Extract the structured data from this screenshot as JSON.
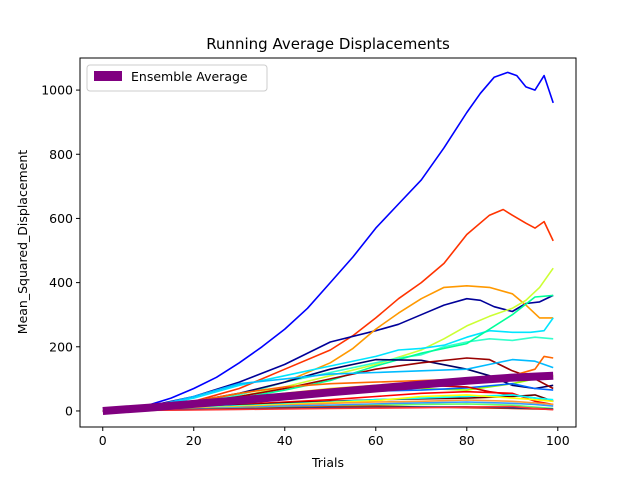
{
  "chart_data": {
    "type": "line",
    "title": "Running Average Displacements",
    "xlabel": "Trials",
    "ylabel": "Mean_Squared_Displacement",
    "xlim": [
      -5,
      104
    ],
    "ylim": [
      -50,
      1100
    ],
    "xticks": [
      0,
      20,
      40,
      60,
      80,
      100
    ],
    "yticks": [
      0,
      200,
      400,
      600,
      800,
      1000
    ],
    "grid": false,
    "legend": {
      "placement": "top-left",
      "entries": [
        "Ensemble Average"
      ]
    },
    "ensemble": {
      "name": "Ensemble Average",
      "color": "#800080",
      "x": [
        0,
        10,
        20,
        30,
        40,
        50,
        60,
        70,
        80,
        90,
        99
      ],
      "y": [
        0,
        10,
        22,
        33,
        45,
        58,
        70,
        82,
        94,
        104,
        110
      ]
    },
    "series": [
      {
        "color": "#0000ff",
        "x": [
          0,
          5,
          10,
          15,
          20,
          25,
          30,
          35,
          40,
          45,
          50,
          55,
          60,
          65,
          70,
          75,
          80,
          83,
          86,
          89,
          91,
          93,
          95,
          97,
          99
        ],
        "y": [
          0,
          5,
          18,
          40,
          70,
          105,
          150,
          200,
          255,
          320,
          400,
          480,
          570,
          645,
          720,
          820,
          930,
          990,
          1040,
          1055,
          1045,
          1010,
          1000,
          1045,
          960
        ]
      },
      {
        "color": "#ff3300",
        "x": [
          0,
          10,
          20,
          30,
          40,
          50,
          55,
          60,
          65,
          70,
          75,
          80,
          85,
          88,
          90,
          93,
          95,
          97,
          99
        ],
        "y": [
          0,
          10,
          30,
          70,
          130,
          190,
          235,
          290,
          350,
          400,
          460,
          550,
          610,
          628,
          610,
          585,
          570,
          590,
          530
        ]
      },
      {
        "color": "#000099",
        "x": [
          0,
          10,
          20,
          30,
          40,
          50,
          60,
          65,
          70,
          75,
          80,
          83,
          86,
          90,
          93,
          96,
          99
        ],
        "y": [
          0,
          15,
          45,
          90,
          145,
          215,
          250,
          270,
          300,
          330,
          350,
          345,
          325,
          310,
          335,
          340,
          360
        ]
      },
      {
        "color": "#ff9900",
        "x": [
          0,
          10,
          20,
          30,
          40,
          50,
          55,
          60,
          65,
          70,
          75,
          80,
          85,
          90,
          93,
          96,
          99
        ],
        "y": [
          0,
          10,
          25,
          50,
          90,
          150,
          195,
          255,
          305,
          350,
          385,
          390,
          385,
          365,
          330,
          290,
          290
        ]
      },
      {
        "color": "#ccff33",
        "x": [
          0,
          10,
          20,
          30,
          40,
          50,
          60,
          70,
          75,
          80,
          85,
          90,
          93,
          96,
          99
        ],
        "y": [
          0,
          5,
          20,
          45,
          75,
          110,
          145,
          190,
          225,
          265,
          295,
          320,
          345,
          385,
          445
        ]
      },
      {
        "color": "#33ffcc",
        "x": [
          0,
          10,
          20,
          30,
          40,
          50,
          60,
          65,
          70,
          75,
          80,
          85,
          90,
          95,
          99
        ],
        "y": [
          0,
          8,
          22,
          50,
          90,
          120,
          150,
          165,
          175,
          200,
          215,
          225,
          220,
          230,
          225
        ]
      },
      {
        "color": "#00e5ff",
        "x": [
          0,
          10,
          20,
          30,
          40,
          50,
          60,
          65,
          70,
          75,
          80,
          85,
          90,
          94,
          97,
          99
        ],
        "y": [
          0,
          10,
          40,
          80,
          110,
          140,
          170,
          190,
          195,
          205,
          230,
          250,
          245,
          245,
          250,
          290
        ]
      },
      {
        "color": "#00ff99",
        "x": [
          0,
          10,
          20,
          30,
          40,
          50,
          60,
          70,
          80,
          90,
          95,
          99
        ],
        "y": [
          0,
          8,
          20,
          40,
          65,
          95,
          140,
          180,
          210,
          300,
          355,
          360
        ]
      },
      {
        "color": "#000066",
        "x": [
          0,
          10,
          20,
          30,
          40,
          50,
          60,
          70,
          80,
          85,
          90,
          95,
          99
        ],
        "y": [
          0,
          12,
          30,
          55,
          90,
          130,
          160,
          158,
          130,
          110,
          80,
          70,
          80
        ]
      },
      {
        "color": "#990000",
        "x": [
          0,
          10,
          20,
          30,
          40,
          50,
          60,
          70,
          80,
          85,
          90,
          95,
          99
        ],
        "y": [
          0,
          8,
          25,
          45,
          70,
          100,
          130,
          150,
          165,
          160,
          125,
          100,
          70
        ]
      },
      {
        "color": "#00bbff",
        "x": [
          0,
          10,
          20,
          30,
          40,
          50,
          60,
          70,
          80,
          85,
          90,
          95,
          99
        ],
        "y": [
          0,
          12,
          45,
          85,
          100,
          115,
          120,
          125,
          130,
          145,
          160,
          155,
          135
        ]
      },
      {
        "color": "#ff6600",
        "x": [
          0,
          10,
          20,
          30,
          40,
          50,
          60,
          70,
          80,
          90,
          95,
          97,
          99
        ],
        "y": [
          0,
          10,
          30,
          55,
          75,
          85,
          90,
          95,
          100,
          110,
          130,
          170,
          165
        ]
      },
      {
        "color": "#ffcc00",
        "x": [
          0,
          10,
          20,
          30,
          40,
          50,
          60,
          70,
          80,
          90,
          95,
          99
        ],
        "y": [
          0,
          6,
          20,
          38,
          55,
          70,
          80,
          85,
          90,
          95,
          105,
          110
        ]
      },
      {
        "color": "#99ff00",
        "x": [
          0,
          10,
          20,
          30,
          40,
          50,
          60,
          70,
          80,
          90,
          95,
          99
        ],
        "y": [
          0,
          6,
          18,
          32,
          45,
          60,
          75,
          70,
          65,
          85,
          100,
          110
        ]
      },
      {
        "color": "#0066ff",
        "x": [
          0,
          10,
          20,
          30,
          40,
          50,
          60,
          70,
          80,
          90,
          95,
          99
        ],
        "y": [
          0,
          5,
          15,
          28,
          40,
          55,
          62,
          65,
          72,
          85,
          70,
          65
        ]
      },
      {
        "color": "#cc0000",
        "x": [
          0,
          10,
          20,
          30,
          40,
          50,
          60,
          70,
          80,
          85,
          90,
          95,
          99
        ],
        "y": [
          0,
          8,
          18,
          30,
          40,
          55,
          68,
          80,
          75,
          60,
          50,
          40,
          30
        ]
      },
      {
        "color": "#ff0000",
        "x": [
          0,
          10,
          20,
          30,
          40,
          50,
          60,
          70,
          80,
          90,
          95,
          99
        ],
        "y": [
          0,
          5,
          12,
          20,
          28,
          35,
          45,
          55,
          60,
          55,
          30,
          20
        ]
      },
      {
        "color": "#660000",
        "x": [
          0,
          10,
          20,
          30,
          40,
          50,
          60,
          70,
          80,
          90,
          95,
          99
        ],
        "y": [
          0,
          5,
          10,
          18,
          25,
          30,
          35,
          38,
          40,
          45,
          50,
          30
        ]
      },
      {
        "color": "#00ffff",
        "x": [
          0,
          10,
          20,
          30,
          40,
          50,
          60,
          70,
          80,
          90,
          95,
          99
        ],
        "y": [
          0,
          4,
          10,
          16,
          22,
          28,
          35,
          40,
          45,
          50,
          40,
          35
        ]
      },
      {
        "color": "#ffff00",
        "x": [
          0,
          10,
          20,
          30,
          40,
          50,
          60,
          70,
          80,
          90,
          95,
          99
        ],
        "y": [
          0,
          4,
          8,
          14,
          20,
          26,
          32,
          45,
          50,
          40,
          35,
          30
        ]
      },
      {
        "color": "#ff9933",
        "x": [
          0,
          10,
          20,
          30,
          40,
          50,
          60,
          70,
          80,
          90,
          95,
          99
        ],
        "y": [
          0,
          3,
          7,
          12,
          18,
          24,
          28,
          30,
          34,
          30,
          25,
          20
        ]
      },
      {
        "color": "#3399ff",
        "x": [
          0,
          10,
          20,
          30,
          40,
          50,
          60,
          70,
          80,
          90,
          95,
          99
        ],
        "y": [
          0,
          3,
          6,
          10,
          15,
          18,
          22,
          25,
          28,
          24,
          20,
          15
        ]
      },
      {
        "color": "#66ff66",
        "x": [
          0,
          10,
          20,
          30,
          40,
          50,
          60,
          70,
          80,
          90,
          95,
          99
        ],
        "y": [
          0,
          3,
          5,
          8,
          11,
          14,
          18,
          20,
          22,
          18,
          12,
          8
        ]
      },
      {
        "color": "#cc3300",
        "x": [
          0,
          10,
          20,
          30,
          40,
          50,
          60,
          70,
          80,
          90,
          95,
          99
        ],
        "y": [
          0,
          2,
          5,
          7,
          10,
          13,
          15,
          12,
          10,
          8,
          6,
          5
        ]
      },
      {
        "color": "#003399",
        "x": [
          0,
          10,
          20,
          30,
          40,
          50,
          60,
          70,
          80,
          90,
          95,
          99
        ],
        "y": [
          0,
          2,
          4,
          6,
          8,
          10,
          11,
          12,
          13,
          10,
          8,
          6
        ]
      },
      {
        "color": "#ff3333",
        "x": [
          0,
          10,
          20,
          30,
          40,
          50,
          60,
          70,
          80,
          90,
          95,
          99
        ],
        "y": [
          0,
          2,
          3,
          5,
          6,
          8,
          9,
          10,
          12,
          14,
          8,
          4
        ]
      }
    ]
  }
}
